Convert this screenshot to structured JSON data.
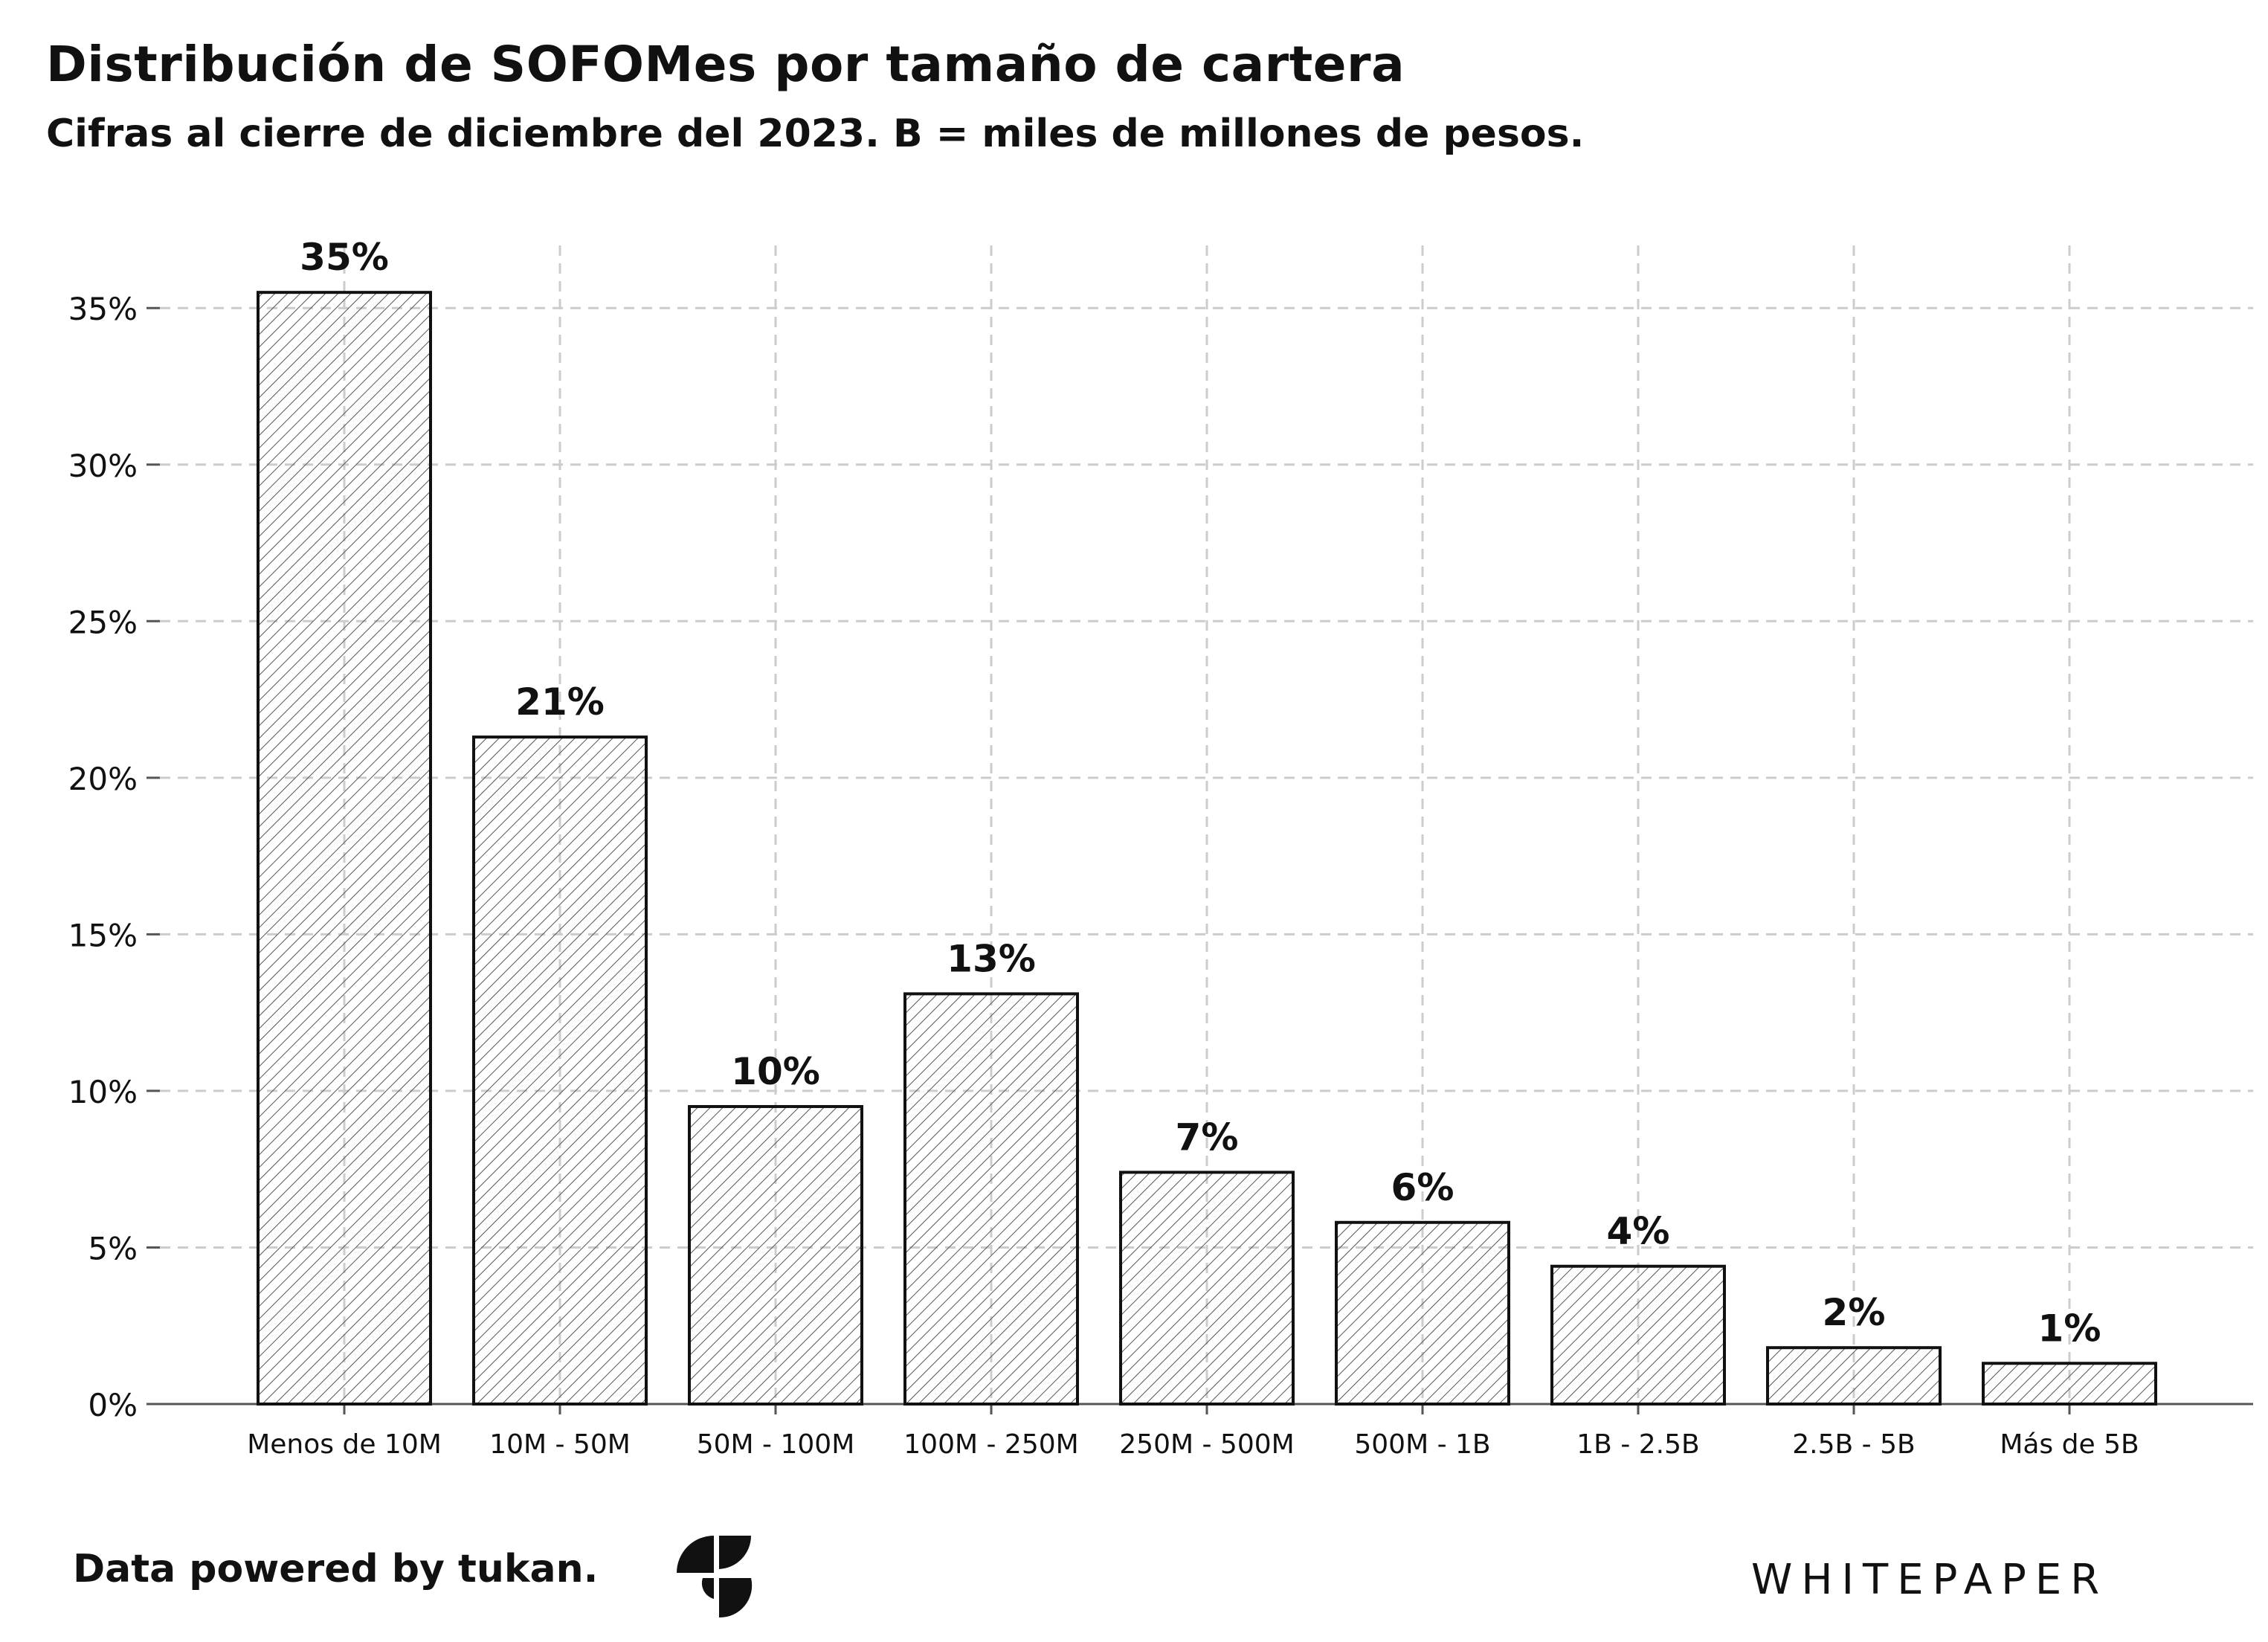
{
  "title": "Distribución de SOFOMes por tamaño de cartera",
  "subtitle": "Cifras al cierre de diciembre del 2023. B = miles de millones de pesos.",
  "footer": {
    "credit": "Data powered by tukan.",
    "brand": "WHITEPAPER"
  },
  "icons": {
    "logo": "tukan-logo-icon"
  },
  "colors": {
    "bar_stroke": "#111111",
    "hatch": "#444444",
    "grid": "#cccccc",
    "axis": "#555555"
  },
  "chart_data": {
    "type": "bar",
    "title": "Distribución de SOFOMes por tamaño de cartera",
    "subtitle": "Cifras al cierre de diciembre del 2023. B = miles de millones de pesos.",
    "xlabel": "",
    "ylabel": "",
    "categories": [
      "Menos de 10M",
      "10M - 50M",
      "50M - 100M",
      "100M - 250M",
      "250M - 500M",
      "500M - 1B",
      "1B - 2.5B",
      "2.5B - 5B",
      "Más de 5B"
    ],
    "values": [
      35.5,
      21.3,
      9.5,
      13.1,
      7.4,
      5.8,
      4.4,
      1.8,
      1.3
    ],
    "data_labels": [
      "35%",
      "21%",
      "10%",
      "13%",
      "7%",
      "6%",
      "4%",
      "2%",
      "1%"
    ],
    "yticks": [
      0,
      5,
      10,
      15,
      20,
      25,
      30,
      35
    ],
    "ytick_labels": [
      "0%",
      "5%",
      "10%",
      "15%",
      "20%",
      "25%",
      "30%",
      "35%"
    ],
    "ylim": [
      0,
      37
    ],
    "grid": true,
    "fill": "hatched"
  }
}
